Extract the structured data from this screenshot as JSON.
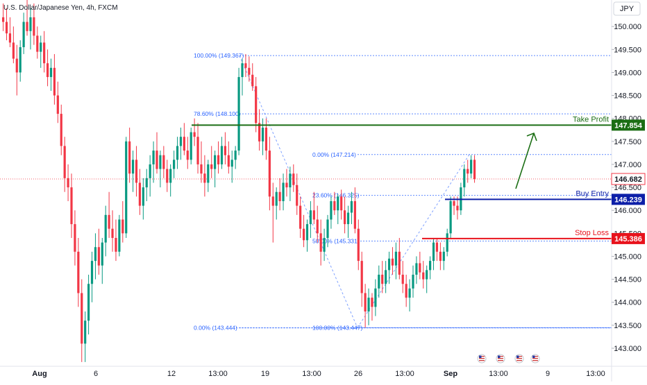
{
  "header": {
    "symbol_title": "U.S. Dollar/Japanese Yen, 4h, FXCM",
    "currency_button": "JPY"
  },
  "colors": {
    "up": "#089981",
    "down": "#f23645",
    "fib": "#2962ff",
    "take_profit": "#1b6e14",
    "buy_entry": "#0d1fa8",
    "stop_loss": "#e8121c",
    "arrow": "#1b6e14",
    "last_price_line": "#f23645"
  },
  "chart_data": {
    "type": "candlestick",
    "symbol": "USDJPY",
    "timeframe": "4h",
    "y_axis": {
      "range": [
        142.6,
        150.3
      ],
      "ticks": [
        "150.000",
        "149.500",
        "149.000",
        "148.500",
        "148.000",
        "147.500",
        "147.000",
        "146.500",
        "146.000",
        "145.500",
        "145.000",
        "144.500",
        "144.000",
        "143.500",
        "143.000"
      ]
    },
    "x_axis": {
      "ticks": [
        "Aug",
        "6",
        "12",
        "13:00",
        "19",
        "13:00",
        "26",
        "13:00",
        "Sep",
        "13:00",
        "9",
        "13:00"
      ]
    },
    "levels": [
      {
        "name": "Take Profit",
        "price": "147.854",
        "value": 147.854
      },
      {
        "name": "Buy Entry",
        "price": "146.239",
        "value": 146.239
      },
      {
        "name": "Stop Loss",
        "price": "145.386",
        "value": 145.386
      }
    ],
    "last_price": {
      "price": "146.682",
      "value": 146.682
    },
    "fib_left": [
      {
        "label": "100.00% (149.367)",
        "value": 149.367
      },
      {
        "label": "78.60% (148.100)",
        "value": 148.1
      },
      {
        "label": "0.00% (143.444)",
        "value": 143.444
      }
    ],
    "fib_right": [
      {
        "label": "0.00% (147.214)",
        "value": 147.214
      },
      {
        "label": "23.60% (146.325)",
        "value": 146.325
      },
      {
        "label": "50.00% (145.331)",
        "value": 145.331
      },
      {
        "label": "100.00% (143.447)",
        "value": 143.447
      }
    ],
    "candles": [
      [
        150.2,
        150.5,
        149.9,
        150.1
      ],
      [
        150.1,
        150.4,
        149.7,
        149.85
      ],
      [
        149.85,
        150.2,
        149.55,
        149.65
      ],
      [
        149.65,
        150.0,
        149.2,
        149.3
      ],
      [
        149.3,
        149.6,
        148.5,
        149.0
      ],
      [
        149.0,
        149.7,
        148.8,
        149.55
      ],
      [
        149.55,
        150.3,
        149.4,
        150.1
      ],
      [
        150.1,
        150.6,
        149.8,
        149.9
      ],
      [
        149.9,
        150.4,
        149.5,
        150.2
      ],
      [
        150.2,
        150.5,
        149.6,
        149.8
      ],
      [
        149.8,
        150.0,
        149.3,
        149.45
      ],
      [
        149.45,
        149.8,
        149.1,
        149.65
      ],
      [
        149.65,
        149.9,
        149.0,
        149.2
      ],
      [
        149.2,
        149.5,
        148.7,
        148.9
      ],
      [
        148.9,
        149.3,
        148.6,
        149.1
      ],
      [
        149.1,
        149.4,
        148.3,
        148.5
      ],
      [
        148.5,
        148.8,
        147.9,
        148.1
      ],
      [
        148.1,
        148.3,
        147.2,
        147.4
      ],
      [
        147.4,
        147.6,
        146.4,
        146.7
      ],
      [
        146.7,
        147.0,
        146.2,
        146.5
      ],
      [
        146.5,
        146.8,
        145.4,
        145.7
      ],
      [
        145.7,
        146.0,
        144.8,
        145.1
      ],
      [
        145.1,
        145.4,
        143.9,
        144.2
      ],
      [
        144.2,
        144.5,
        142.7,
        143.1
      ],
      [
        143.1,
        143.8,
        142.7,
        143.6
      ],
      [
        143.6,
        144.6,
        143.3,
        144.4
      ],
      [
        144.4,
        145.1,
        144.0,
        144.9
      ],
      [
        144.9,
        145.5,
        144.5,
        145.2
      ],
      [
        145.2,
        145.6,
        144.6,
        144.8
      ],
      [
        144.8,
        145.4,
        144.4,
        145.3
      ],
      [
        145.3,
        146.1,
        145.0,
        145.9
      ],
      [
        145.9,
        146.4,
        145.4,
        145.6
      ],
      [
        145.6,
        146.0,
        145.1,
        145.4
      ],
      [
        145.4,
        145.8,
        144.9,
        145.1
      ],
      [
        145.1,
        145.9,
        145.0,
        145.8
      ],
      [
        145.8,
        146.2,
        145.3,
        145.5
      ],
      [
        145.5,
        147.6,
        145.4,
        147.5
      ],
      [
        147.5,
        147.8,
        146.6,
        146.8
      ],
      [
        146.8,
        147.3,
        146.4,
        147.1
      ],
      [
        147.1,
        147.4,
        146.3,
        146.6
      ],
      [
        146.6,
        146.9,
        145.9,
        146.1
      ],
      [
        146.1,
        146.7,
        145.8,
        146.5
      ],
      [
        146.5,
        146.9,
        146.2,
        146.7
      ],
      [
        146.7,
        147.2,
        146.3,
        147.0
      ],
      [
        147.0,
        147.5,
        146.6,
        147.3
      ],
      [
        147.3,
        147.7,
        146.8,
        146.9
      ],
      [
        146.9,
        147.3,
        146.5,
        147.2
      ],
      [
        147.2,
        147.4,
        146.7,
        146.9
      ],
      [
        146.9,
        147.1,
        146.4,
        146.6
      ],
      [
        146.6,
        147.0,
        146.3,
        146.9
      ],
      [
        146.9,
        147.3,
        146.7,
        147.1
      ],
      [
        147.1,
        147.6,
        146.9,
        147.4
      ],
      [
        147.4,
        147.8,
        147.1,
        147.6
      ],
      [
        147.6,
        147.9,
        147.2,
        147.3
      ],
      [
        147.3,
        147.6,
        146.9,
        147.1
      ],
      [
        147.1,
        147.8,
        147.0,
        147.7
      ],
      [
        147.7,
        148.0,
        147.4,
        147.6
      ],
      [
        147.6,
        147.9,
        146.8,
        147.0
      ],
      [
        147.0,
        147.5,
        146.6,
        146.8
      ],
      [
        146.8,
        147.2,
        146.3,
        146.6
      ],
      [
        146.6,
        147.1,
        146.4,
        147.0
      ],
      [
        147.0,
        147.4,
        146.7,
        146.9
      ],
      [
        146.9,
        147.3,
        146.5,
        147.2
      ],
      [
        147.2,
        147.5,
        146.8,
        147.0
      ],
      [
        147.0,
        147.6,
        146.9,
        147.4
      ],
      [
        147.4,
        147.7,
        147.0,
        147.2
      ],
      [
        147.2,
        147.5,
        146.8,
        146.95
      ],
      [
        146.95,
        147.3,
        146.6,
        147.1
      ],
      [
        147.1,
        147.4,
        146.9,
        147.3
      ],
      [
        147.3,
        149.1,
        147.2,
        148.9
      ],
      [
        148.9,
        149.3,
        148.5,
        149.2
      ],
      [
        149.2,
        149.4,
        148.9,
        149.1
      ],
      [
        149.1,
        149.35,
        148.8,
        148.95
      ],
      [
        148.95,
        149.2,
        148.6,
        148.7
      ],
      [
        148.7,
        148.9,
        147.7,
        147.9
      ],
      [
        147.9,
        148.2,
        147.3,
        147.5
      ],
      [
        147.5,
        148.0,
        147.2,
        147.8
      ],
      [
        147.8,
        148.0,
        147.1,
        147.3
      ],
      [
        147.3,
        147.6,
        146.0,
        146.3
      ],
      [
        146.3,
        146.6,
        145.3,
        146.1
      ],
      [
        146.1,
        146.5,
        145.8,
        146.4
      ],
      [
        146.4,
        146.7,
        146.0,
        146.2
      ],
      [
        146.2,
        146.8,
        146.0,
        146.6
      ],
      [
        146.6,
        146.9,
        146.3,
        146.5
      ],
      [
        146.5,
        146.95,
        146.2,
        146.8
      ],
      [
        146.8,
        147.0,
        146.4,
        146.55
      ],
      [
        146.55,
        146.8,
        145.9,
        146.1
      ],
      [
        146.1,
        146.3,
        145.4,
        145.6
      ],
      [
        145.6,
        145.9,
        145.2,
        145.35
      ],
      [
        145.35,
        145.8,
        145.1,
        145.7
      ],
      [
        145.7,
        146.2,
        145.4,
        146.0
      ],
      [
        146.0,
        146.4,
        145.7,
        145.8
      ],
      [
        145.8,
        146.1,
        145.3,
        145.5
      ],
      [
        145.5,
        145.8,
        144.8,
        145.1
      ],
      [
        145.1,
        145.6,
        144.9,
        145.4
      ],
      [
        145.4,
        145.9,
        145.2,
        145.8
      ],
      [
        145.8,
        146.3,
        145.6,
        146.2
      ],
      [
        146.2,
        146.4,
        145.9,
        146.0
      ],
      [
        146.0,
        146.35,
        145.7,
        146.3
      ],
      [
        146.3,
        146.45,
        145.8,
        146.0
      ],
      [
        146.0,
        146.3,
        145.5,
        145.7
      ],
      [
        145.7,
        146.1,
        145.4,
        145.95
      ],
      [
        145.95,
        146.4,
        145.7,
        146.2
      ],
      [
        146.2,
        146.5,
        145.5,
        145.6
      ],
      [
        145.6,
        145.8,
        144.7,
        144.9
      ],
      [
        144.9,
        145.1,
        143.9,
        144.2
      ],
      [
        144.2,
        144.4,
        143.45,
        143.8
      ],
      [
        143.8,
        144.3,
        143.5,
        144.1
      ],
      [
        144.1,
        144.2,
        143.6,
        143.9
      ],
      [
        143.9,
        144.5,
        143.7,
        144.3
      ],
      [
        144.3,
        144.8,
        144.1,
        144.6
      ],
      [
        144.6,
        144.9,
        144.2,
        144.4
      ],
      [
        144.4,
        144.9,
        144.2,
        144.7
      ],
      [
        144.7,
        145.1,
        144.4,
        144.95
      ],
      [
        144.95,
        145.2,
        144.6,
        144.8
      ],
      [
        144.8,
        145.3,
        144.5,
        145.1
      ],
      [
        145.1,
        145.4,
        144.5,
        144.6
      ],
      [
        144.6,
        144.9,
        144.2,
        144.4
      ],
      [
        144.4,
        144.6,
        143.9,
        144.1
      ],
      [
        144.1,
        144.5,
        143.8,
        144.3
      ],
      [
        144.3,
        144.8,
        144.1,
        144.6
      ],
      [
        144.6,
        145.0,
        144.4,
        144.85
      ],
      [
        144.85,
        145.1,
        144.5,
        144.65
      ],
      [
        144.65,
        144.9,
        144.3,
        144.5
      ],
      [
        144.5,
        144.8,
        144.2,
        144.7
      ],
      [
        144.7,
        145.0,
        144.5,
        144.9
      ],
      [
        144.9,
        145.4,
        144.7,
        145.3
      ],
      [
        145.3,
        145.4,
        144.9,
        145.1
      ],
      [
        145.1,
        145.3,
        144.7,
        144.9
      ],
      [
        144.9,
        145.2,
        144.7,
        145.1
      ],
      [
        145.1,
        145.6,
        145.0,
        145.5
      ],
      [
        145.5,
        146.3,
        145.4,
        146.2
      ],
      [
        146.2,
        146.3,
        145.9,
        146.1
      ],
      [
        146.1,
        146.3,
        145.8,
        146.0
      ],
      [
        146.0,
        146.6,
        145.9,
        146.5
      ],
      [
        146.5,
        147.0,
        146.3,
        146.9
      ],
      [
        146.9,
        147.1,
        146.6,
        146.8
      ],
      [
        146.8,
        147.2,
        146.7,
        147.1
      ],
      [
        147.1,
        147.2,
        146.6,
        146.682
      ]
    ]
  }
}
